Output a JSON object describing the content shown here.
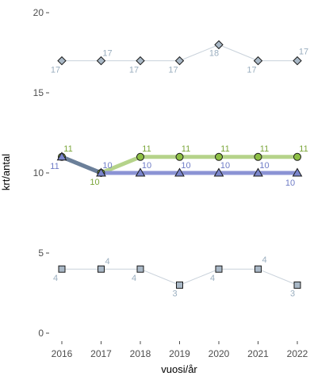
{
  "chart_data": {
    "type": "line",
    "xlabel": "vuosi/år",
    "ylabel": "krt/antal",
    "x": [
      "2016",
      "2017",
      "2018",
      "2019",
      "2020",
      "2021",
      "2022"
    ],
    "ylim": [
      0,
      20
    ],
    "yticks": [
      0,
      5,
      10,
      15,
      20
    ],
    "grid": false,
    "legend": "none",
    "series": [
      {
        "values": [
          17,
          17,
          17,
          17,
          18,
          17,
          17
        ],
        "marker": "diamond",
        "line_color": "#c9d2db",
        "marker_fill": "#a9b8c6",
        "label_color": "#9aaebf",
        "label_side": "alternate"
      },
      {
        "values": [
          11,
          10,
          11,
          11,
          11,
          11,
          11
        ],
        "marker": "circle",
        "line_color": "#b5d38a",
        "marker_fill": "#8dbf45",
        "label_color": "#7ba63a",
        "label_side": "above"
      },
      {
        "values": [
          11,
          10,
          10,
          10,
          10,
          10,
          10
        ],
        "marker": "triangle",
        "line_color": "#8b93d4",
        "marker_fill": "#7b86cc",
        "label_color": "#6f7cc6",
        "label_side": "above-first-below-last"
      },
      {
        "values": [
          4,
          4,
          4,
          3,
          4,
          4,
          3
        ],
        "marker": "square",
        "line_color": "#c9d2db",
        "marker_fill": "#a9b8c6",
        "label_color": "#9aaebf",
        "label_side": "alternate"
      }
    ],
    "first_segment_color": "#6b7f99"
  }
}
